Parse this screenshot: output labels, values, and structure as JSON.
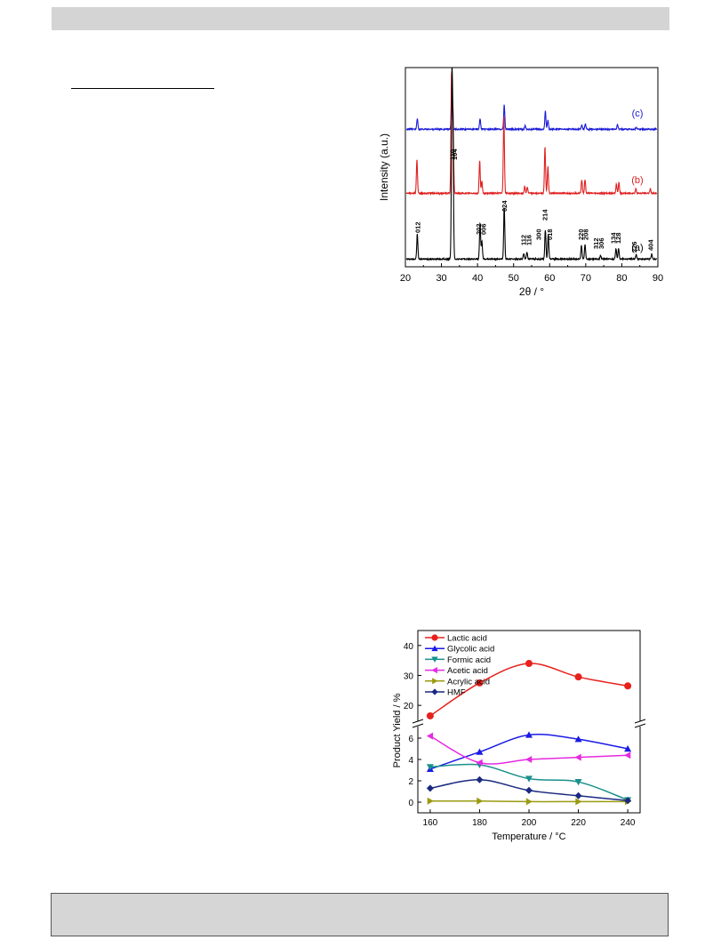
{
  "chart_data": [
    {
      "type": "line",
      "title": "",
      "xlabel": "2θ / °",
      "ylabel": "Intensity (a.u.)",
      "xlim": [
        20,
        90
      ],
      "xticks": [
        20,
        30,
        40,
        50,
        60,
        70,
        80,
        90
      ],
      "grid": false,
      "series": [
        {
          "name": "(c)",
          "color": "#1a1ad8",
          "peaks": [
            [
              23.3,
              12
            ],
            [
              32.9,
              58
            ],
            [
              40.7,
              12
            ],
            [
              47.4,
              27
            ],
            [
              53.2,
              4
            ],
            [
              58.8,
              20
            ],
            [
              59.5,
              10
            ],
            [
              68.9,
              5
            ],
            [
              69.9,
              6
            ],
            [
              78.8,
              5
            ],
            [
              84.0,
              2
            ]
          ]
        },
        {
          "name": "(b)",
          "color": "#e02020",
          "peaks": [
            [
              23.2,
              38
            ],
            [
              32.8,
              134
            ],
            [
              33.2,
              90
            ],
            [
              40.6,
              36
            ],
            [
              41.2,
              13
            ],
            [
              47.3,
              88
            ],
            [
              53.1,
              8
            ],
            [
              53.8,
              7
            ],
            [
              58.7,
              52
            ],
            [
              59.5,
              30
            ],
            [
              68.9,
              15
            ],
            [
              69.8,
              15
            ],
            [
              78.5,
              10
            ],
            [
              79.2,
              12
            ],
            [
              83.9,
              5
            ],
            [
              87.9,
              5
            ]
          ]
        },
        {
          "name": "(a)",
          "color": "#000000",
          "peaks": [
            [
              23.3,
              28
            ],
            [
              32.9,
              196
            ],
            [
              33.2,
              120
            ],
            [
              40.7,
              40
            ],
            [
              41.2,
              20
            ],
            [
              47.4,
              58
            ],
            [
              52.8,
              6
            ],
            [
              53.7,
              8
            ],
            [
              58.8,
              33
            ],
            [
              59.6,
              27
            ],
            [
              68.8,
              15
            ],
            [
              69.8,
              16
            ],
            [
              74.1,
              4
            ],
            [
              78.4,
              12
            ],
            [
              79.1,
              12
            ],
            [
              84.0,
              5
            ],
            [
              88.3,
              6
            ]
          ]
        }
      ],
      "peak_labels": [
        {
          "text": "012",
          "x": 23.3
        },
        {
          "text": "110",
          "x": 32.9
        },
        {
          "text": "104",
          "x": 33.6
        },
        {
          "text": "202",
          "x": 40.2
        },
        {
          "text": "006",
          "x": 41.6
        },
        {
          "text": "024",
          "x": 47.4
        },
        {
          "text": "112",
          "x": 52.6
        },
        {
          "text": "116",
          "x": 54.1
        },
        {
          "text": "300",
          "x": 56.9
        },
        {
          "text": "214",
          "x": 58.6
        },
        {
          "text": "018",
          "x": 59.9
        },
        {
          "text": "220",
          "x": 68.5
        },
        {
          "text": "208",
          "x": 69.9
        },
        {
          "text": "312",
          "x": 72.8
        },
        {
          "text": "306",
          "x": 74.2
        },
        {
          "text": "134",
          "x": 77.6
        },
        {
          "text": "128",
          "x": 78.9
        },
        {
          "text": "226",
          "x": 83.4
        },
        {
          "text": "404",
          "x": 87.9
        }
      ]
    },
    {
      "type": "line",
      "title": "",
      "xlabel": "Temperature / °C",
      "ylabel": "Product Yield / %",
      "x": [
        160,
        180,
        200,
        220,
        240
      ],
      "xlim": [
        155,
        245
      ],
      "ylim_upper": [
        15,
        45
      ],
      "ylim_lower": [
        -1,
        7
      ],
      "yticks_upper": [
        20,
        30,
        40
      ],
      "yticks_lower": [
        0,
        2,
        4,
        6
      ],
      "axis_break": true,
      "grid": false,
      "legend_position": "top-left",
      "series": [
        {
          "name": "Lactic acid",
          "color": "#e8201c",
          "marker": "circle",
          "values": [
            16.5,
            27.5,
            34.0,
            29.5,
            26.5
          ]
        },
        {
          "name": "Glycolic acid",
          "color": "#1a1ae6",
          "marker": "triangle-up",
          "values": [
            3.1,
            4.7,
            6.3,
            5.9,
            5.0
          ]
        },
        {
          "name": "Formic acid",
          "color": "#18908c",
          "marker": "triangle-down",
          "values": [
            3.3,
            3.5,
            2.2,
            1.9,
            0.2
          ]
        },
        {
          "name": "Acetic acid",
          "color": "#e62ae0",
          "marker": "triangle-left",
          "values": [
            6.2,
            3.7,
            4.0,
            4.2,
            4.4
          ]
        },
        {
          "name": "Acrylic acid",
          "color": "#9a9a10",
          "marker": "triangle-right",
          "values": [
            0.1,
            0.1,
            0.05,
            0.05,
            0.05
          ]
        },
        {
          "name": "HMF",
          "color": "#1a2a80",
          "marker": "diamond",
          "values": [
            1.3,
            2.1,
            1.1,
            0.6,
            0.15
          ]
        }
      ]
    }
  ]
}
